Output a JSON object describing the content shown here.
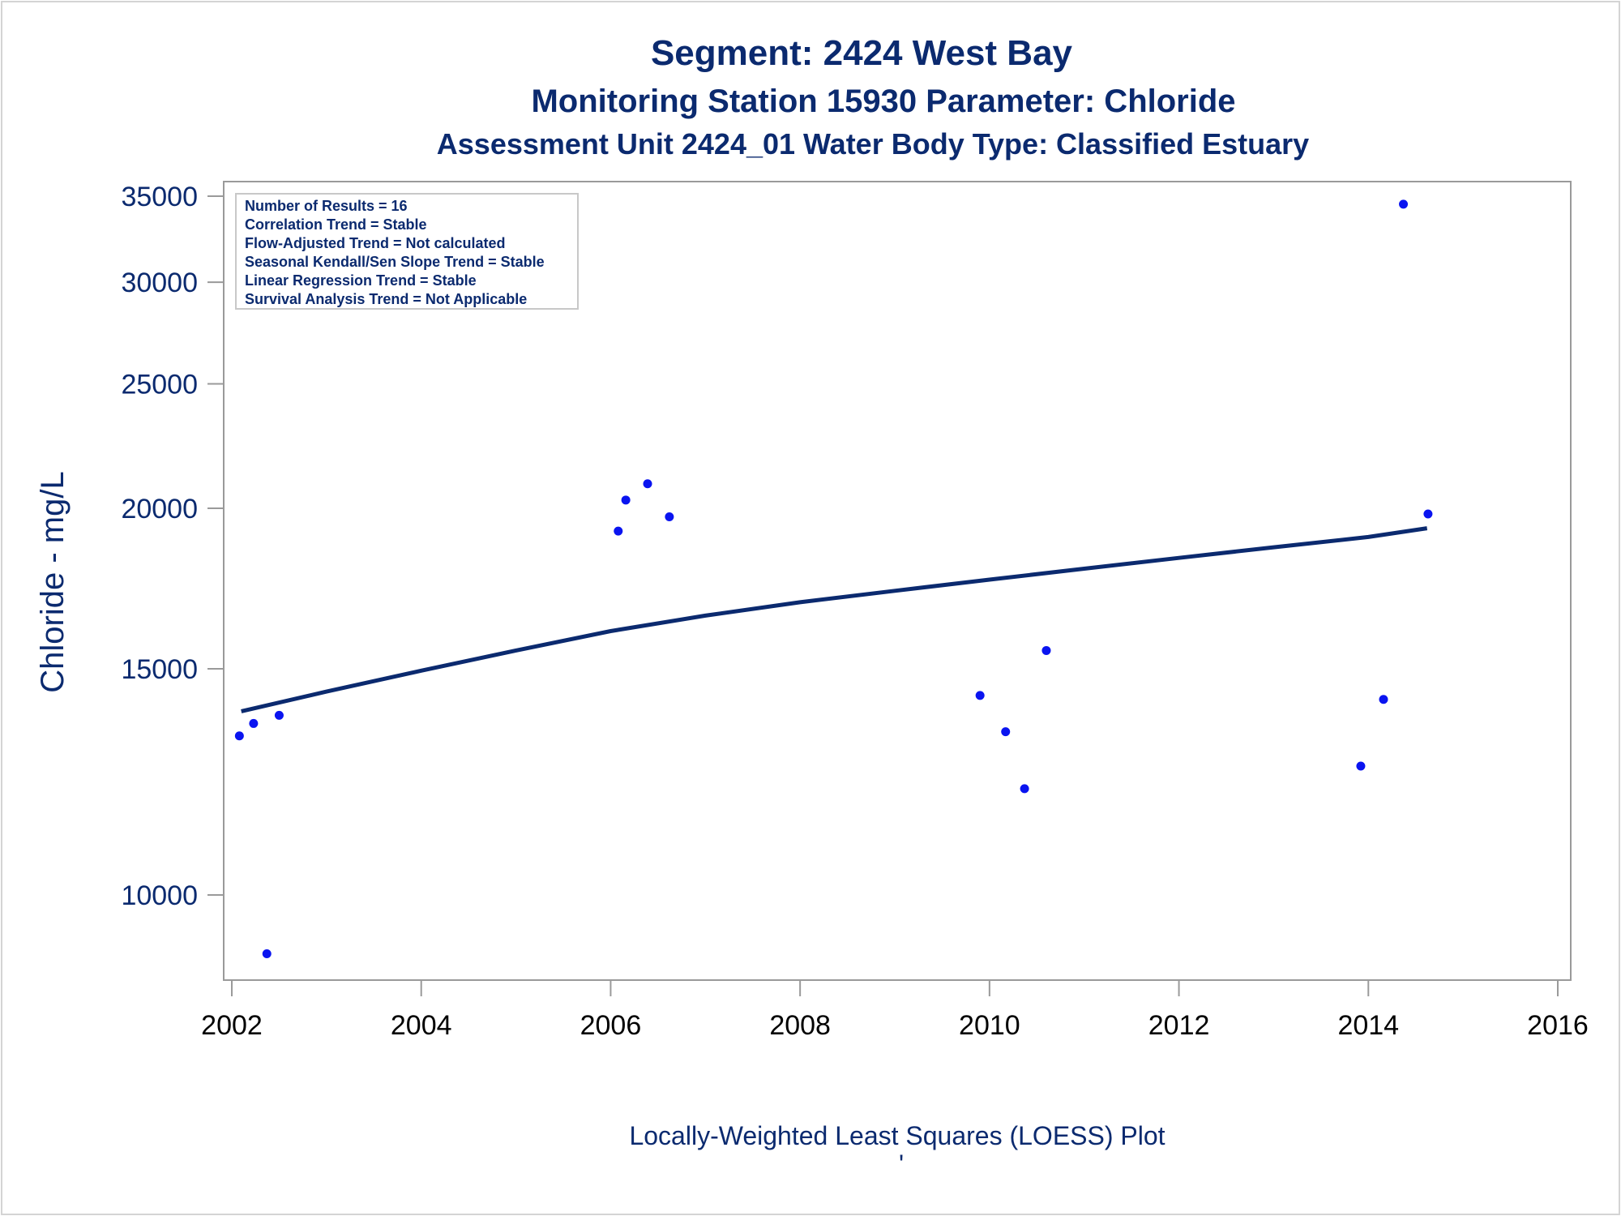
{
  "chart_data": {
    "type": "scatter",
    "title": "Segment: 2424  West Bay",
    "subtitle": "Monitoring Station 15930 Parameter: Chloride",
    "subtitle2": "Assessment Unit 2424_01   Water Body Type: Classified Estuary",
    "xlabel": "",
    "ylabel": "Chloride - mg/L",
    "footer": "Locally-Weighted Least Squares (LOESS) Plot",
    "footer_mark": "'",
    "y_scale": "log",
    "xlim": [
      2002,
      2016
    ],
    "ylim": [
      9000,
      36000
    ],
    "x_ticks": [
      2002,
      2004,
      2006,
      2008,
      2010,
      2012,
      2014,
      2016
    ],
    "y_ticks": [
      10000,
      15000,
      20000,
      25000,
      30000,
      35000
    ],
    "grid": false,
    "stats_box": {
      "placement": "top-left",
      "lines": [
        "Number of Results = 16",
        "Correlation Trend = Stable",
        "Flow-Adjusted Trend = Not calculated",
        "Seasonal Kendall/Sen Slope Trend = Stable",
        "Linear Regression Trend = Stable",
        "Survival Analysis Trend = Not Applicable"
      ]
    },
    "series": [
      {
        "type": "scatter",
        "x": [
          2002.08,
          2002.23,
          2002.37,
          2002.5,
          2006.08,
          2006.16,
          2006.39,
          2006.62,
          2009.9,
          2010.17,
          2010.37,
          2010.6,
          2013.92,
          2014.16,
          2014.37,
          2014.63
        ],
        "y": [
          13300,
          13600,
          9000,
          13800,
          19200,
          20300,
          20900,
          19700,
          14300,
          13400,
          12100,
          15500,
          12600,
          14200,
          34500,
          19800
        ]
      },
      {
        "type": "line",
        "x": [
          2002.1,
          2003,
          2004,
          2005,
          2006,
          2007,
          2008,
          2009,
          2010,
          2011,
          2012,
          2013,
          2014,
          2014.62
        ],
        "y": [
          13900,
          14400,
          14950,
          15500,
          16050,
          16500,
          16900,
          17250,
          17600,
          17950,
          18300,
          18650,
          19000,
          19300
        ]
      }
    ]
  },
  "colors": {
    "text": "#0b2a6f",
    "points": "#0a14f0",
    "line": "#0b2a6f",
    "axis": "#9a9a9a"
  }
}
